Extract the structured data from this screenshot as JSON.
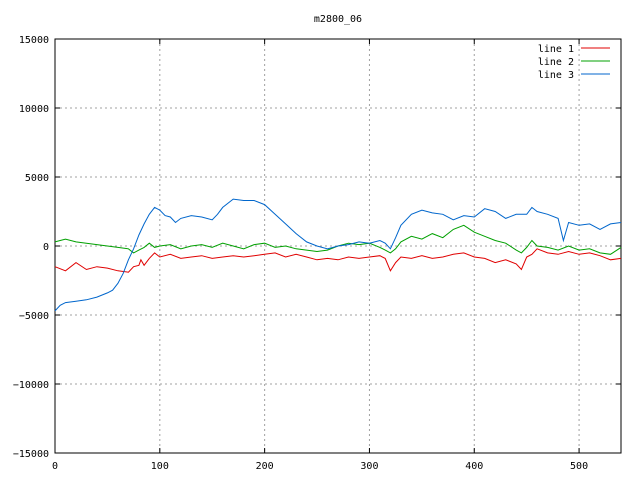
{
  "chart_data": {
    "type": "line",
    "title": "m2800_06",
    "xlabel": "",
    "ylabel": "",
    "xlim": [
      0,
      540
    ],
    "ylim": [
      -15000,
      15000
    ],
    "xticks": [
      0,
      100,
      200,
      300,
      400,
      500
    ],
    "yticks": [
      -15000,
      -10000,
      -5000,
      0,
      5000,
      10000,
      15000
    ],
    "xtick_labels": [
      "0",
      "100",
      "200",
      "300",
      "400",
      "500"
    ],
    "ytick_labels": [
      "−15000",
      "−10000",
      "−5000",
      "0",
      "5000",
      "10000",
      "15000"
    ],
    "grid": true,
    "legend_position": "top-right",
    "series": [
      {
        "name": "line 1",
        "color": "#e00000",
        "points": [
          [
            0,
            -1500
          ],
          [
            10,
            -1800
          ],
          [
            20,
            -1200
          ],
          [
            30,
            -1700
          ],
          [
            40,
            -1500
          ],
          [
            50,
            -1600
          ],
          [
            60,
            -1800
          ],
          [
            70,
            -1900
          ],
          [
            75,
            -1500
          ],
          [
            80,
            -1400
          ],
          [
            82,
            -1000
          ],
          [
            85,
            -1400
          ],
          [
            90,
            -900
          ],
          [
            95,
            -500
          ],
          [
            100,
            -800
          ],
          [
            110,
            -600
          ],
          [
            120,
            -900
          ],
          [
            130,
            -800
          ],
          [
            140,
            -700
          ],
          [
            150,
            -900
          ],
          [
            160,
            -800
          ],
          [
            170,
            -700
          ],
          [
            180,
            -800
          ],
          [
            190,
            -700
          ],
          [
            200,
            -600
          ],
          [
            210,
            -500
          ],
          [
            220,
            -800
          ],
          [
            230,
            -600
          ],
          [
            240,
            -800
          ],
          [
            250,
            -1000
          ],
          [
            260,
            -900
          ],
          [
            270,
            -1000
          ],
          [
            280,
            -800
          ],
          [
            290,
            -900
          ],
          [
            300,
            -800
          ],
          [
            310,
            -700
          ],
          [
            315,
            -900
          ],
          [
            320,
            -1800
          ],
          [
            325,
            -1200
          ],
          [
            330,
            -800
          ],
          [
            340,
            -900
          ],
          [
            350,
            -700
          ],
          [
            360,
            -900
          ],
          [
            370,
            -800
          ],
          [
            380,
            -600
          ],
          [
            390,
            -500
          ],
          [
            400,
            -800
          ],
          [
            410,
            -900
          ],
          [
            420,
            -1200
          ],
          [
            430,
            -1000
          ],
          [
            440,
            -1300
          ],
          [
            445,
            -1700
          ],
          [
            450,
            -800
          ],
          [
            455,
            -600
          ],
          [
            460,
            -200
          ],
          [
            470,
            -500
          ],
          [
            480,
            -600
          ],
          [
            490,
            -400
          ],
          [
            500,
            -600
          ],
          [
            510,
            -500
          ],
          [
            520,
            -700
          ],
          [
            530,
            -1000
          ],
          [
            540,
            -900
          ]
        ]
      },
      {
        "name": "line 2",
        "color": "#00a000",
        "points": [
          [
            0,
            300
          ],
          [
            5,
            400
          ],
          [
            10,
            500
          ],
          [
            20,
            300
          ],
          [
            30,
            200
          ],
          [
            40,
            100
          ],
          [
            50,
            0
          ],
          [
            60,
            -100
          ],
          [
            70,
            -200
          ],
          [
            75,
            -500
          ],
          [
            80,
            -300
          ],
          [
            85,
            -100
          ],
          [
            90,
            200
          ],
          [
            95,
            -100
          ],
          [
            100,
            0
          ],
          [
            110,
            100
          ],
          [
            120,
            -200
          ],
          [
            130,
            0
          ],
          [
            140,
            100
          ],
          [
            150,
            -100
          ],
          [
            160,
            200
          ],
          [
            170,
            0
          ],
          [
            180,
            -200
          ],
          [
            190,
            100
          ],
          [
            200,
            200
          ],
          [
            210,
            -100
          ],
          [
            220,
            0
          ],
          [
            230,
            -200
          ],
          [
            240,
            -300
          ],
          [
            250,
            -400
          ],
          [
            260,
            -300
          ],
          [
            270,
            0
          ],
          [
            280,
            200
          ],
          [
            290,
            100
          ],
          [
            300,
            200
          ],
          [
            310,
            -100
          ],
          [
            315,
            -300
          ],
          [
            320,
            -500
          ],
          [
            325,
            -200
          ],
          [
            330,
            300
          ],
          [
            340,
            700
          ],
          [
            350,
            500
          ],
          [
            360,
            900
          ],
          [
            370,
            600
          ],
          [
            380,
            1200
          ],
          [
            390,
            1500
          ],
          [
            400,
            1000
          ],
          [
            410,
            700
          ],
          [
            420,
            400
          ],
          [
            430,
            200
          ],
          [
            440,
            -300
          ],
          [
            445,
            -500
          ],
          [
            450,
            -100
          ],
          [
            455,
            400
          ],
          [
            460,
            0
          ],
          [
            470,
            -100
          ],
          [
            480,
            -300
          ],
          [
            490,
            0
          ],
          [
            500,
            -300
          ],
          [
            510,
            -200
          ],
          [
            520,
            -500
          ],
          [
            530,
            -600
          ],
          [
            540,
            -100
          ]
        ]
      },
      {
        "name": "line 3",
        "color": "#0066cc",
        "points": [
          [
            0,
            -4700
          ],
          [
            5,
            -4300
          ],
          [
            10,
            -4100
          ],
          [
            20,
            -4000
          ],
          [
            30,
            -3900
          ],
          [
            40,
            -3700
          ],
          [
            50,
            -3400
          ],
          [
            55,
            -3200
          ],
          [
            60,
            -2700
          ],
          [
            65,
            -2000
          ],
          [
            70,
            -1000
          ],
          [
            75,
            -200
          ],
          [
            80,
            800
          ],
          [
            85,
            1600
          ],
          [
            90,
            2300
          ],
          [
            95,
            2800
          ],
          [
            100,
            2600
          ],
          [
            105,
            2200
          ],
          [
            110,
            2100
          ],
          [
            115,
            1700
          ],
          [
            120,
            2000
          ],
          [
            130,
            2200
          ],
          [
            140,
            2100
          ],
          [
            150,
            1900
          ],
          [
            155,
            2300
          ],
          [
            160,
            2800
          ],
          [
            170,
            3400
          ],
          [
            180,
            3300
          ],
          [
            190,
            3300
          ],
          [
            200,
            3000
          ],
          [
            210,
            2300
          ],
          [
            220,
            1600
          ],
          [
            230,
            900
          ],
          [
            240,
            300
          ],
          [
            250,
            0
          ],
          [
            260,
            -200
          ],
          [
            270,
            0
          ],
          [
            280,
            100
          ],
          [
            290,
            300
          ],
          [
            300,
            200
          ],
          [
            310,
            400
          ],
          [
            315,
            200
          ],
          [
            320,
            -200
          ],
          [
            325,
            600
          ],
          [
            330,
            1500
          ],
          [
            340,
            2300
          ],
          [
            350,
            2600
          ],
          [
            360,
            2400
          ],
          [
            370,
            2300
          ],
          [
            380,
            1900
          ],
          [
            390,
            2200
          ],
          [
            400,
            2100
          ],
          [
            410,
            2700
          ],
          [
            420,
            2500
          ],
          [
            430,
            2000
          ],
          [
            440,
            2300
          ],
          [
            450,
            2300
          ],
          [
            455,
            2800
          ],
          [
            460,
            2500
          ],
          [
            470,
            2300
          ],
          [
            480,
            2000
          ],
          [
            485,
            400
          ],
          [
            490,
            1700
          ],
          [
            500,
            1500
          ],
          [
            510,
            1600
          ],
          [
            520,
            1200
          ],
          [
            530,
            1600
          ],
          [
            540,
            1700
          ]
        ]
      }
    ]
  }
}
